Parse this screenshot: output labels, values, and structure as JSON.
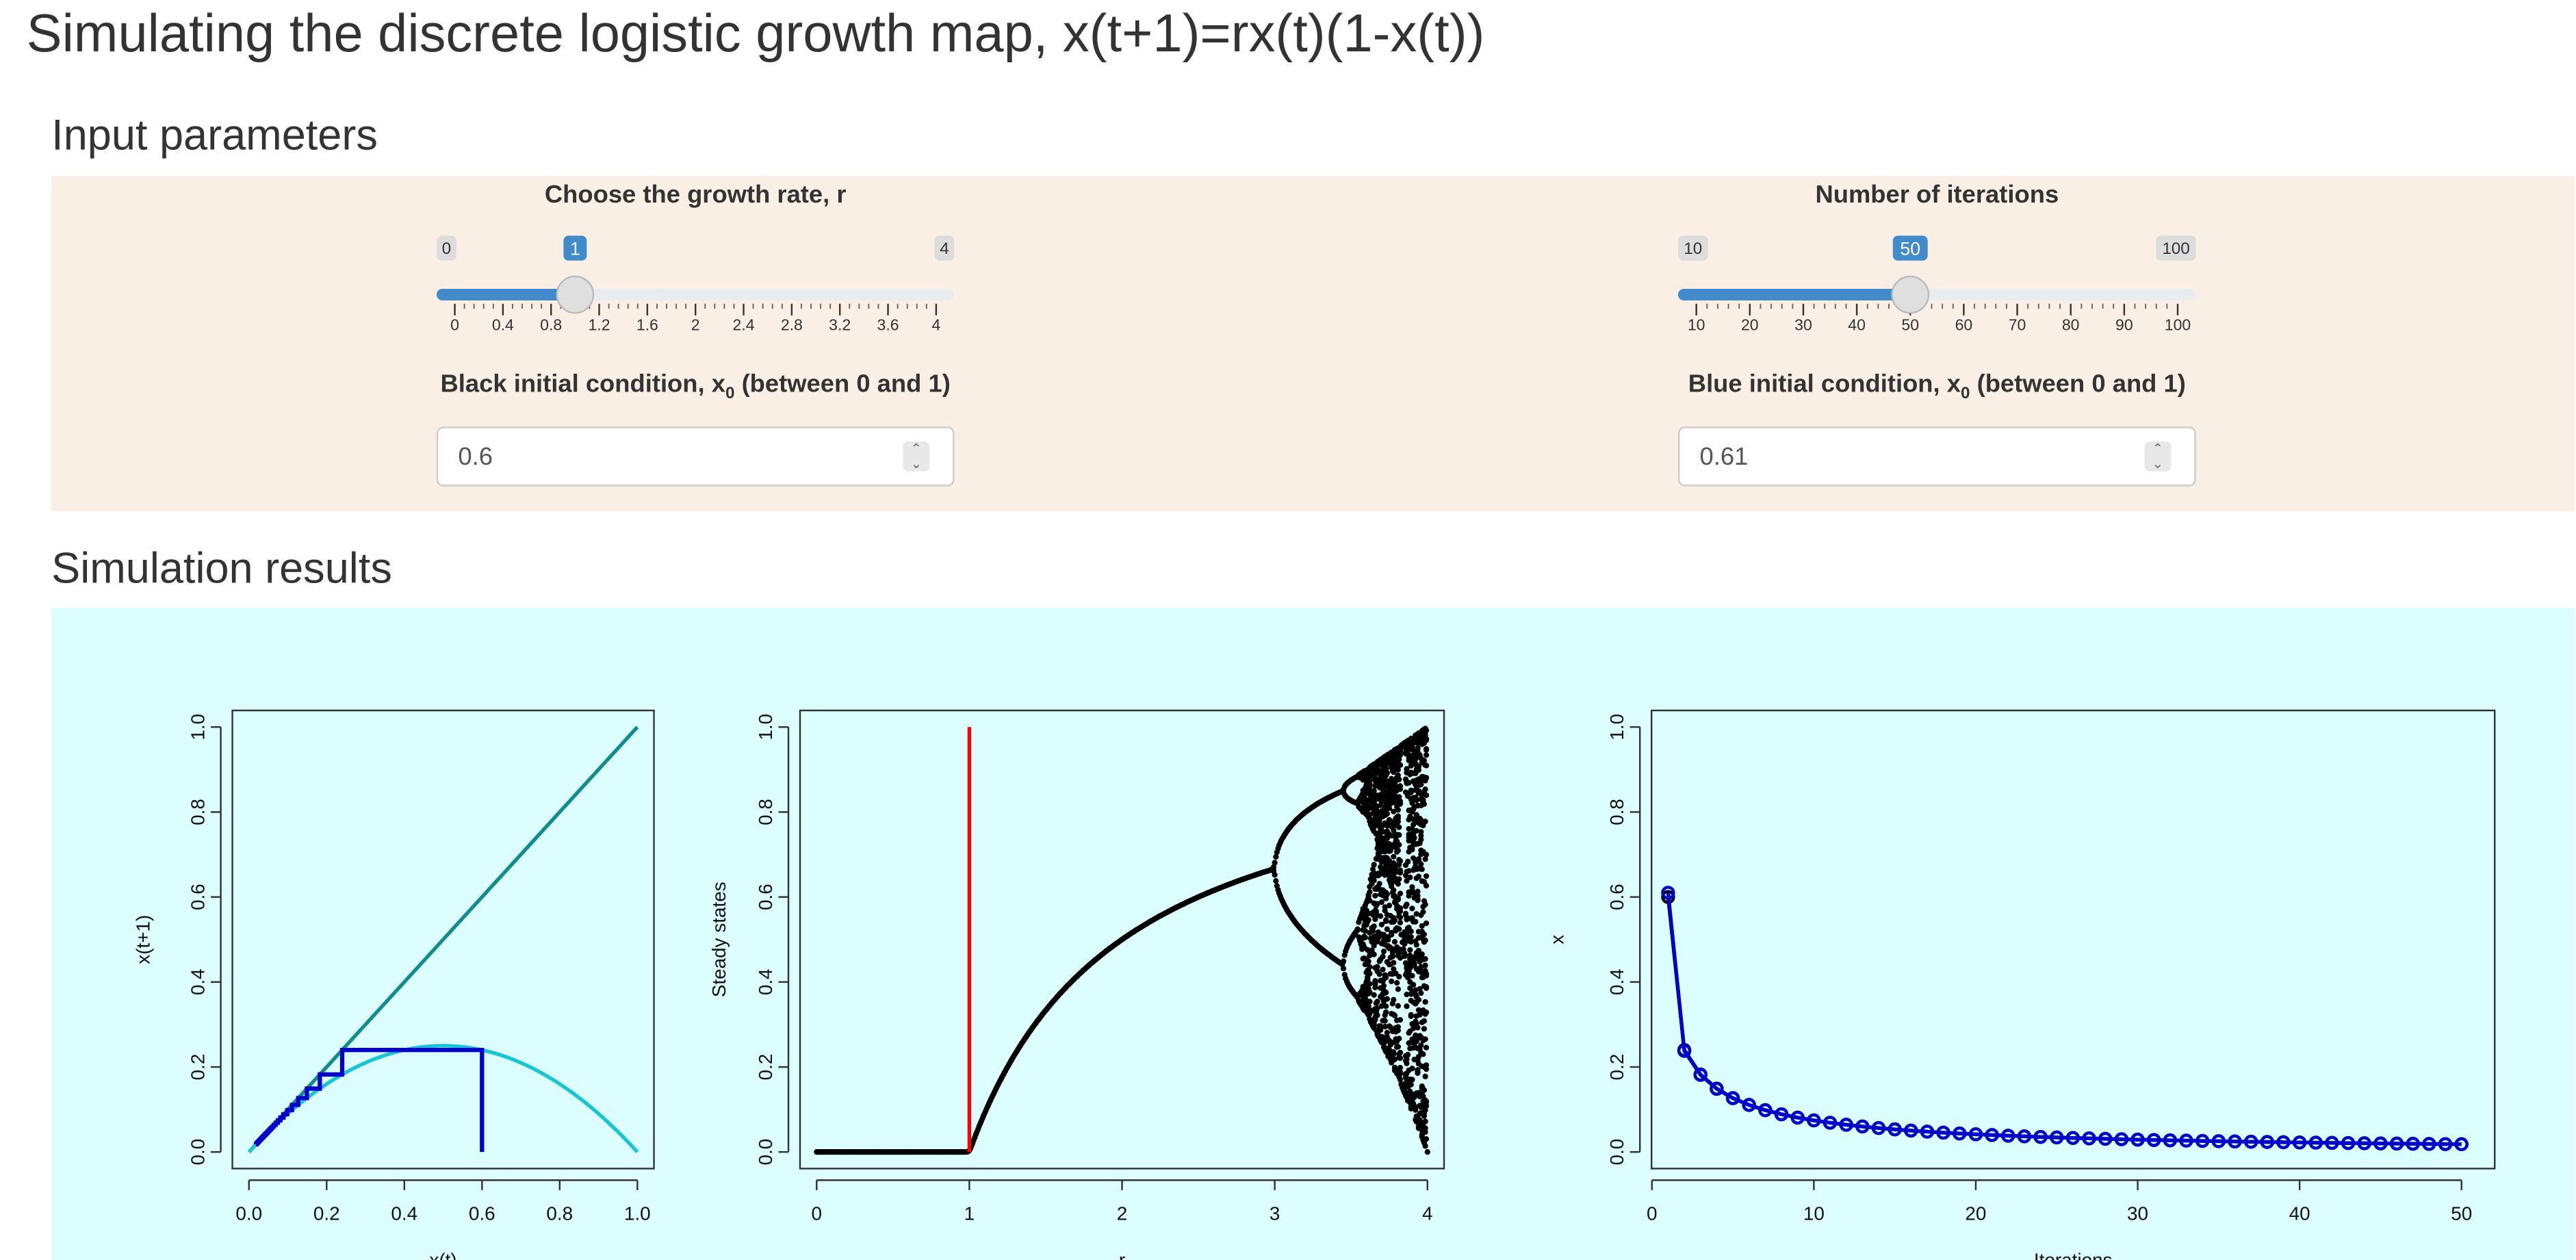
{
  "page": {
    "title": "Simulating the discrete logistic growth map, x(t+1)=rx(t)(1-x(t))",
    "section_inputs": "Input parameters",
    "section_results": "Simulation results"
  },
  "controls": {
    "growth_rate": {
      "label": "Choose the growth rate, r",
      "min": 0,
      "max": 4,
      "value": 1,
      "min_label": "0",
      "max_label": "4",
      "value_label": "1",
      "ticks": [
        "0",
        "0.4",
        "0.8",
        "1.2",
        "1.6",
        "2",
        "2.4",
        "2.8",
        "3.2",
        "3.6",
        "4"
      ]
    },
    "iterations": {
      "label": "Number of iterations",
      "min": 10,
      "max": 100,
      "value": 50,
      "min_label": "10",
      "max_label": "100",
      "value_label": "50",
      "ticks": [
        "10",
        "20",
        "30",
        "40",
        "50",
        "60",
        "70",
        "80",
        "90",
        "100"
      ]
    },
    "black_x0": {
      "label_main": "Black initial condition, x",
      "label_sub": "0",
      "label_tail": " (between 0 and 1)",
      "value": "0.6"
    },
    "blue_x0": {
      "label_main": "Blue initial condition, x",
      "label_sub": "0",
      "label_tail": " (between 0 and 1)",
      "value": "0.61"
    }
  },
  "colors": {
    "accent": "#428bca",
    "input_panel": "#faefe4",
    "output_panel": "#dcfefe",
    "identity_line": "#138c8c",
    "parabola": "#17c6d2",
    "cobweb": "#0000cc",
    "bifurcation": "#000000",
    "r_marker": "#ff0000",
    "series": "#0000cc"
  },
  "chart_data": [
    {
      "type": "line",
      "xlabel": "x(t)",
      "ylabel": "x(t+1)",
      "xlim": [
        0,
        1
      ],
      "ylim": [
        0,
        1
      ],
      "x_ticks": [
        "0.0",
        "0.2",
        "0.4",
        "0.6",
        "0.8",
        "1.0"
      ],
      "y_ticks": [
        "0.0",
        "0.2",
        "0.4",
        "0.6",
        "0.8",
        "1.0"
      ],
      "r": 1,
      "x0": 0.6,
      "cobweb_steps": 50
    },
    {
      "type": "scatter",
      "xlabel": "r",
      "ylabel": "Steady states",
      "xlim": [
        0,
        4
      ],
      "ylim": [
        0,
        1
      ],
      "x_ticks": [
        "0",
        "1",
        "2",
        "3",
        "4"
      ],
      "y_ticks": [
        "0.0",
        "0.2",
        "0.4",
        "0.6",
        "0.8",
        "1.0"
      ],
      "r_marker": 1
    },
    {
      "type": "line",
      "xlabel": "Iterations",
      "ylabel": "x",
      "xlim": [
        1,
        50
      ],
      "ylim": [
        0,
        1
      ],
      "x_ticks": [
        "0",
        "10",
        "20",
        "30",
        "40",
        "50"
      ],
      "y_ticks": [
        "0.0",
        "0.2",
        "0.4",
        "0.6",
        "0.8",
        "1.0"
      ],
      "r": 1,
      "x0_black": 0.6,
      "x0_blue": 0.61,
      "n": 50
    }
  ]
}
